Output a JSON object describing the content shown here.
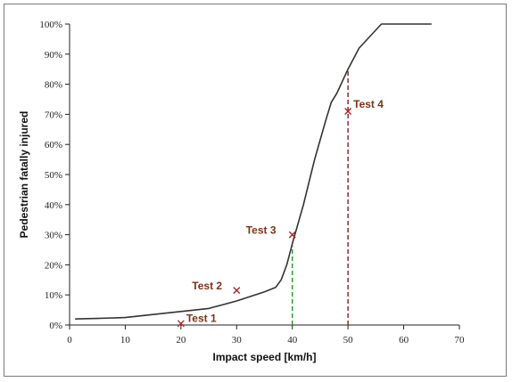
{
  "chart_data": {
    "type": "line",
    "title": "",
    "xlabel": "Impact speed [km/h]",
    "ylabel": "Pedestrian fatally injured",
    "xlim": [
      0,
      70
    ],
    "ylim": [
      0,
      100
    ],
    "x_ticks": [
      0,
      10,
      20,
      30,
      40,
      50,
      60,
      70
    ],
    "x_tick_labels": [
      "0",
      "10",
      "20",
      "30",
      "40",
      "50",
      "60",
      "70"
    ],
    "y_ticks": [
      0,
      10,
      20,
      30,
      40,
      50,
      60,
      70,
      80,
      90,
      100
    ],
    "y_tick_labels": [
      "0%",
      "10%",
      "20%",
      "30%",
      "40%",
      "50%",
      "60%",
      "70%",
      "80%",
      "90%",
      "100%"
    ],
    "grid": false,
    "legend": "none",
    "series": [
      {
        "x": [
          1,
          5,
          10,
          15,
          20,
          25,
          30,
          35,
          37,
          38,
          39,
          40,
          42,
          44,
          46,
          47,
          48,
          50,
          52,
          56,
          65
        ],
        "y": [
          2,
          2.2,
          2.5,
          3.5,
          4.5,
          5.5,
          8,
          11,
          12.5,
          15,
          20,
          27,
          40,
          55,
          68,
          74,
          77,
          85,
          92,
          100,
          100
        ],
        "color": "#333333"
      }
    ],
    "annotations": [
      {
        "label": "Test 1",
        "x": 20,
        "y": 0.5,
        "color": "#7b3217",
        "marker_color": "#b22222"
      },
      {
        "label": "Test 2",
        "x": 30,
        "y": 11.5,
        "color": "#7b3217",
        "marker_color": "#b22222"
      },
      {
        "label": "Test 3",
        "x": 40,
        "y": 30,
        "color": "#7b3217",
        "marker_color": "#b22222"
      },
      {
        "label": "Test 4",
        "x": 50,
        "y": 71,
        "color": "#7b3217",
        "marker_color": "#b22222"
      }
    ],
    "reference_lines": [
      {
        "x": 40,
        "y_top": 26.5,
        "style": "dashed",
        "color": "#1a9a2a"
      },
      {
        "x": 50,
        "y_top": 85,
        "style": "dashed",
        "color": "#8b1a1a"
      }
    ]
  }
}
